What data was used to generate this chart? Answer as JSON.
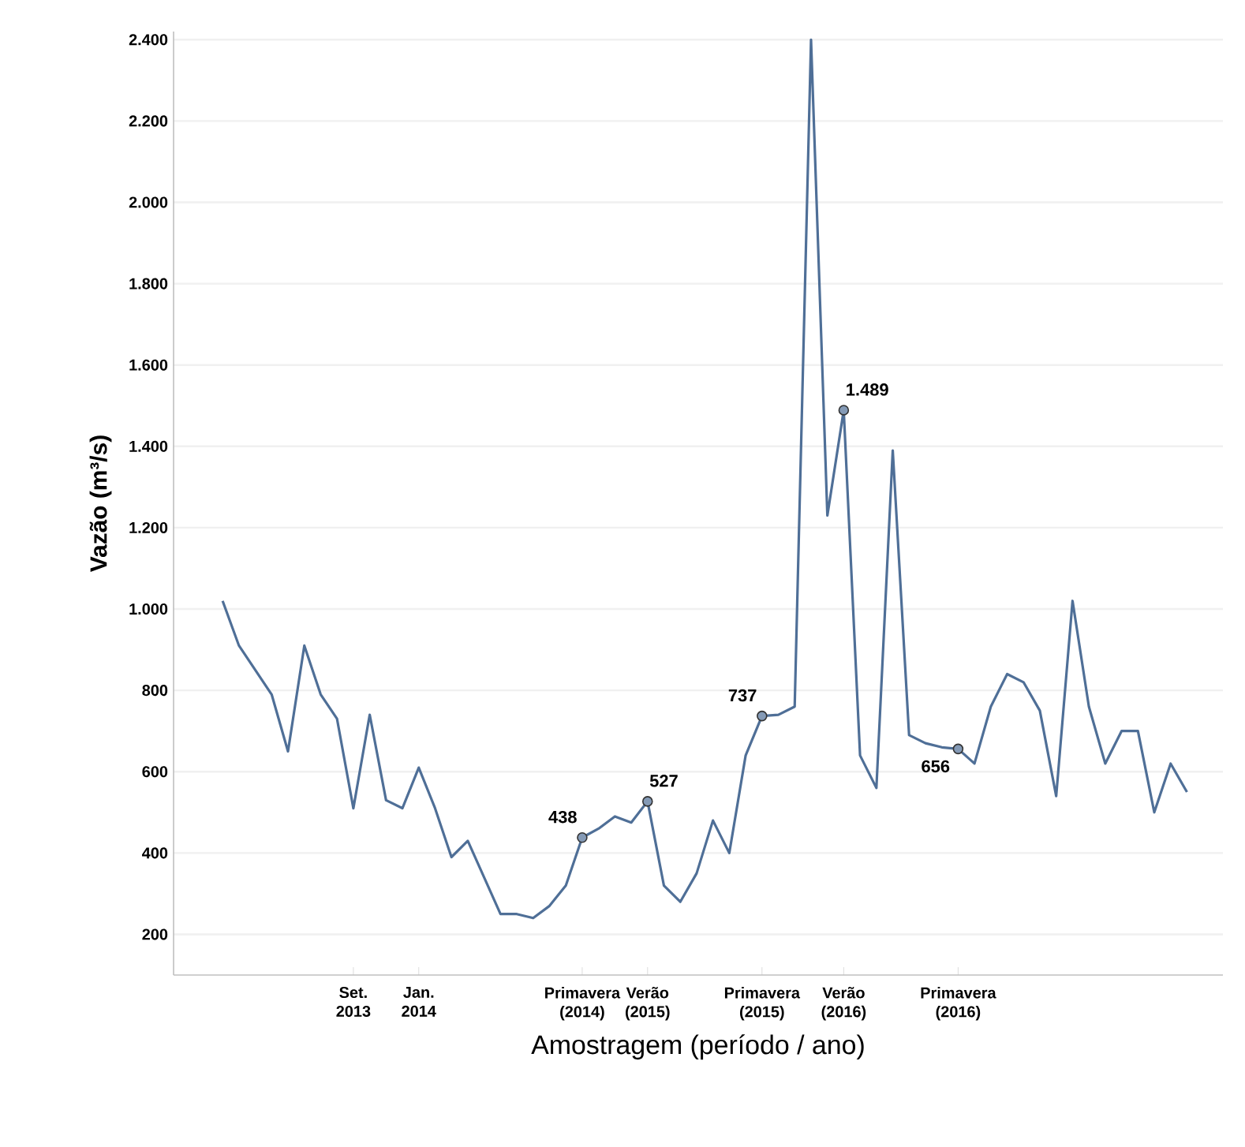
{
  "chart_data": {
    "type": "line",
    "xlabel": "Amostragem (período / ano)",
    "ylabel": "Vazão (m³/s)",
    "categories": [
      null,
      null,
      null,
      null,
      null,
      null,
      null,
      null,
      "Set. 2013",
      null,
      null,
      null,
      "Jan. 2014",
      null,
      null,
      null,
      null,
      null,
      null,
      null,
      null,
      null,
      "Primavera (2014)",
      null,
      null,
      null,
      "Verão (2015)",
      null,
      null,
      null,
      null,
      null,
      null,
      "Primavera (2015)",
      null,
      null,
      null,
      null,
      "Verão (2016)",
      null,
      null,
      null,
      null,
      null,
      null,
      "Primavera (2016)",
      null,
      null,
      null,
      null,
      null,
      null,
      null,
      null,
      null,
      null,
      null,
      null,
      null,
      null
    ],
    "values": [
      1020,
      910,
      850,
      790,
      650,
      910,
      790,
      730,
      510,
      740,
      530,
      510,
      610,
      510,
      390,
      430,
      340,
      250,
      250,
      240,
      270,
      320,
      438,
      460,
      490,
      475,
      527,
      320,
      280,
      350,
      480,
      400,
      640,
      737,
      740,
      760,
      2400,
      1230,
      1489,
      640,
      560,
      1390,
      690,
      670,
      660,
      656,
      620,
      760,
      840,
      820,
      750,
      540,
      1020,
      760,
      620,
      700,
      700,
      500,
      620,
      550
    ],
    "value_labels": [
      null,
      null,
      null,
      null,
      null,
      null,
      null,
      null,
      null,
      null,
      null,
      null,
      null,
      null,
      null,
      null,
      null,
      null,
      null,
      null,
      null,
      null,
      "438",
      null,
      null,
      null,
      "527",
      null,
      null,
      null,
      null,
      null,
      null,
      "737",
      null,
      null,
      null,
      null,
      "1.489",
      null,
      null,
      null,
      null,
      null,
      null,
      "656",
      null,
      null,
      null,
      null,
      null,
      null,
      null,
      null,
      null,
      null,
      null,
      null,
      null,
      null
    ],
    "color": "#4f6f97",
    "ylim": [
      100,
      2420
    ],
    "yticks": [
      200,
      400,
      600,
      800,
      {
        "value": 1000,
        "label": "1.000"
      },
      {
        "value": 1200,
        "label": "1.200"
      },
      {
        "value": 1400,
        "label": "1.400"
      },
      {
        "value": 1600,
        "label": "1.600"
      },
      {
        "value": 1800,
        "label": "1.800"
      },
      {
        "value": 2000,
        "label": "2.000"
      },
      {
        "value": 2200,
        "label": "2.200"
      },
      {
        "value": 2400,
        "label": "2.400"
      }
    ],
    "grid": "y"
  }
}
